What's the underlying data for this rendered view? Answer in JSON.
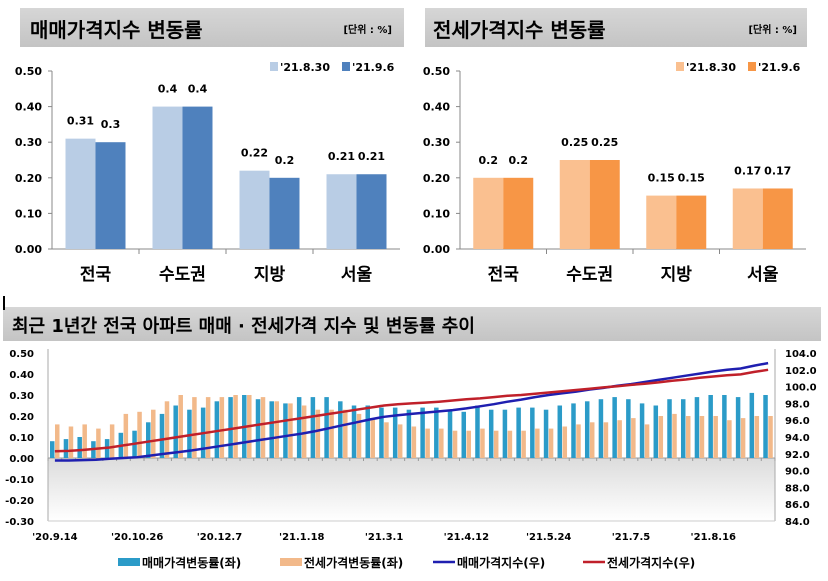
{
  "chart_data": [
    {
      "type": "bar",
      "title": "매매가격지수 변동률",
      "unit": "[단위 : %]",
      "categories": [
        "전국",
        "수도권",
        "지방",
        "서울"
      ],
      "series": [
        {
          "name": "'21.8.30",
          "values": [
            0.31,
            0.4,
            0.22,
            0.21
          ],
          "color": "#b9cde5"
        },
        {
          "name": "'21.9.6",
          "values": [
            0.3,
            0.4,
            0.2,
            0.21
          ],
          "color": "#4f81bd"
        }
      ],
      "ylim": [
        0,
        0.5
      ],
      "yticks": [
        "0.00",
        "0.10",
        "0.20",
        "0.30",
        "0.40",
        "0.50"
      ],
      "legend": "top-right"
    },
    {
      "type": "bar",
      "title": "전세가격지수 변동률",
      "unit": "[단위 : %]",
      "categories": [
        "전국",
        "수도권",
        "지방",
        "서울"
      ],
      "series": [
        {
          "name": "'21.8.30",
          "values": [
            0.2,
            0.25,
            0.15,
            0.17
          ],
          "color": "#fac090"
        },
        {
          "name": "'21.9.6",
          "values": [
            0.2,
            0.25,
            0.15,
            0.17
          ],
          "color": "#f79646"
        }
      ],
      "ylim": [
        0,
        0.5
      ],
      "yticks": [
        "0.00",
        "0.10",
        "0.20",
        "0.30",
        "0.40",
        "0.50"
      ],
      "legend": "top-right"
    },
    {
      "type": "bar+line",
      "title": "최근 1년간 전국 아파트 매매 · 전세가격 지수 및 변동률 추이",
      "xticks": [
        "'20.9.14",
        "'20.10.26",
        "'20.12.7",
        "'21.1.18",
        "'21.3.1",
        "'21.4.12",
        "'21.5.24",
        "'21.7.5",
        "'21.8.16"
      ],
      "ylim_left": [
        -0.3,
        0.5
      ],
      "yticks_left": [
        "0.50",
        "0.40",
        "0.30",
        "0.20",
        "0.10",
        "0.00",
        "-0.10",
        "-0.20",
        "-0.30"
      ],
      "ylim_right": [
        84,
        104
      ],
      "yticks_right": [
        "104.0",
        "102.0",
        "100.0",
        "98.0",
        "96.0",
        "94.0",
        "92.0",
        "90.0",
        "88.0",
        "86.0",
        "84.0"
      ],
      "series": [
        {
          "name": "매매가격변동률(좌)",
          "axis": "left",
          "kind": "bar",
          "color": "#2b9bc8",
          "values": [
            0.08,
            0.09,
            0.1,
            0.08,
            0.09,
            0.12,
            0.13,
            0.17,
            0.21,
            0.25,
            0.23,
            0.24,
            0.27,
            0.29,
            0.3,
            0.28,
            0.27,
            0.26,
            0.29,
            0.29,
            0.29,
            0.27,
            0.25,
            0.25,
            0.24,
            0.24,
            0.23,
            0.24,
            0.24,
            0.23,
            0.22,
            0.25,
            0.23,
            0.23,
            0.24,
            0.24,
            0.23,
            0.25,
            0.26,
            0.27,
            0.28,
            0.29,
            0.28,
            0.26,
            0.25,
            0.28,
            0.28,
            0.29,
            0.3,
            0.3,
            0.29,
            0.31,
            0.3
          ]
        },
        {
          "name": "전세가격변동률(좌)",
          "axis": "left",
          "kind": "bar",
          "color": "#f2b98a",
          "values": [
            0.16,
            0.15,
            0.16,
            0.14,
            0.16,
            0.21,
            0.22,
            0.23,
            0.27,
            0.3,
            0.29,
            0.29,
            0.29,
            0.3,
            0.3,
            0.29,
            0.27,
            0.26,
            0.25,
            0.23,
            0.23,
            0.23,
            0.21,
            0.19,
            0.17,
            0.16,
            0.15,
            0.14,
            0.14,
            0.13,
            0.13,
            0.14,
            0.13,
            0.13,
            0.13,
            0.14,
            0.14,
            0.15,
            0.16,
            0.17,
            0.17,
            0.18,
            0.19,
            0.16,
            0.2,
            0.21,
            0.2,
            0.2,
            0.2,
            0.18,
            0.19,
            0.2,
            0.2
          ]
        },
        {
          "name": "매매가격지수(우)",
          "axis": "right",
          "kind": "line",
          "color": "#1f1fb0",
          "values": [
            91.2,
            91.2,
            91.25,
            91.3,
            91.4,
            91.5,
            91.6,
            91.8,
            92.0,
            92.2,
            92.4,
            92.65,
            92.9,
            93.15,
            93.4,
            93.65,
            93.9,
            94.15,
            94.4,
            94.7,
            95.05,
            95.4,
            95.75,
            96.1,
            96.4,
            96.6,
            96.75,
            96.9,
            97.05,
            97.2,
            97.4,
            97.65,
            97.9,
            98.2,
            98.45,
            98.75,
            99.0,
            99.2,
            99.4,
            99.65,
            99.85,
            100.1,
            100.3,
            100.55,
            100.8,
            101.05,
            101.3,
            101.55,
            101.8,
            102.0,
            102.15,
            102.5,
            102.8
          ]
        },
        {
          "name": "전세가격지수(우)",
          "axis": "right",
          "kind": "line",
          "color": "#c0202a",
          "values": [
            92.3,
            92.35,
            92.45,
            92.6,
            92.75,
            93.0,
            93.25,
            93.5,
            93.75,
            94.0,
            94.25,
            94.5,
            94.75,
            95.0,
            95.25,
            95.5,
            95.75,
            96.0,
            96.25,
            96.5,
            96.75,
            97.0,
            97.25,
            97.5,
            97.75,
            97.9,
            98.0,
            98.1,
            98.2,
            98.35,
            98.5,
            98.6,
            98.75,
            98.9,
            99.0,
            99.15,
            99.3,
            99.45,
            99.6,
            99.75,
            99.9,
            100.05,
            100.2,
            100.35,
            100.5,
            100.7,
            100.85,
            101.05,
            101.2,
            101.35,
            101.45,
            101.75,
            102.0
          ]
        }
      ],
      "legend": "bottom"
    }
  ]
}
